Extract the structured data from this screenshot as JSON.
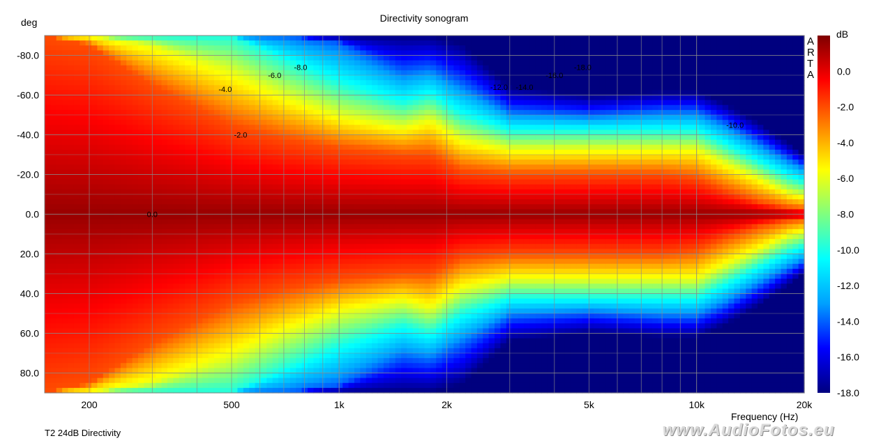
{
  "chart_data": {
    "type": "heatmap",
    "title": "Directivity sonogram",
    "xlabel": "Frequency (Hz)",
    "ylabel": "deg",
    "subtitle": "T2 24dB Directivity",
    "x_scale": "log",
    "xlim": [
      150,
      20000
    ],
    "ylim": [
      -90,
      90
    ],
    "y_inverted": true,
    "x_ticks": [
      200,
      500,
      1000,
      2000,
      5000,
      10000,
      20000
    ],
    "x_tick_labels": [
      "200",
      "500",
      "1k",
      "2k",
      "5k",
      "10k",
      "20k"
    ],
    "y_ticks": [
      -80,
      -60,
      -40,
      -20,
      0,
      20,
      40,
      60,
      80
    ],
    "y_tick_labels": [
      "-80.0",
      "-60.0",
      "-40.0",
      "-20.0",
      "0.0",
      "20.0",
      "40.0",
      "60.0",
      "80.0"
    ],
    "grid": true,
    "colorbar": {
      "unit": "dB",
      "range": [
        -18,
        2
      ],
      "colormap": [
        "#00007f",
        "#0000ff",
        "#00a0ff",
        "#00ffff",
        "#7fff7f",
        "#ffff00",
        "#ff8000",
        "#ff0000",
        "#7f0000"
      ],
      "ticks": [
        0,
        -2,
        -4,
        -6,
        -8,
        -10,
        -12,
        -14,
        -16,
        -18
      ],
      "tick_labels": [
        "0.0",
        "-2.0",
        "-4.0",
        "-6.0",
        "-8.0",
        "-10.0",
        "-12.0",
        "-14.0",
        "-16.0",
        "-18.0"
      ]
    },
    "beamwidth_contours": {
      "description": "upper/lower angle (deg) where response reaches each level",
      "freq": [
        150,
        200,
        300,
        500,
        700,
        1000,
        1500,
        1800,
        2200,
        3000,
        5000,
        8000,
        10000,
        12000,
        15000,
        18000,
        20000
      ],
      "-2dB": [
        90,
        85,
        65,
        45,
        38,
        33,
        30,
        30,
        22,
        20,
        20,
        20,
        18,
        12,
        6,
        3,
        2
      ],
      "-6dB": [
        90,
        90,
        85,
        72,
        60,
        50,
        44,
        48,
        38,
        33,
        33,
        33,
        33,
        26,
        18,
        11,
        9
      ],
      "-10dB": [
        90,
        90,
        90,
        90,
        78,
        66,
        56,
        60,
        50,
        42,
        42,
        42,
        42,
        35,
        26,
        19,
        16
      ],
      "-14dB": [
        90,
        90,
        90,
        90,
        90,
        86,
        72,
        74,
        66,
        52,
        50,
        52,
        52,
        46,
        36,
        28,
        24
      ],
      "-18dB": [
        90,
        90,
        90,
        90,
        90,
        90,
        90,
        90,
        86,
        64,
        60,
        62,
        62,
        56,
        46,
        36,
        30
      ]
    },
    "annotations": [
      {
        "text": "0.0",
        "x": 300,
        "y": 0
      },
      {
        "text": "-2.0",
        "x": 530,
        "y": -40
      },
      {
        "text": "-4.0",
        "x": 480,
        "y": -63
      },
      {
        "text": "-6.0",
        "x": 660,
        "y": -70
      },
      {
        "text": "-8.0",
        "x": 780,
        "y": -74
      },
      {
        "text": "-12.0",
        "x": 2800,
        "y": -64
      },
      {
        "text": "-14.0",
        "x": 3300,
        "y": -64
      },
      {
        "text": "-16.0",
        "x": 4000,
        "y": -70
      },
      {
        "text": "-18.0",
        "x": 4800,
        "y": -74
      },
      {
        "text": "-10.0",
        "x": 12800,
        "y": -45
      }
    ],
    "brand_vertical": [
      "A",
      "R",
      "T",
      "A"
    ]
  },
  "watermark": "www.AudioFotos.eu"
}
